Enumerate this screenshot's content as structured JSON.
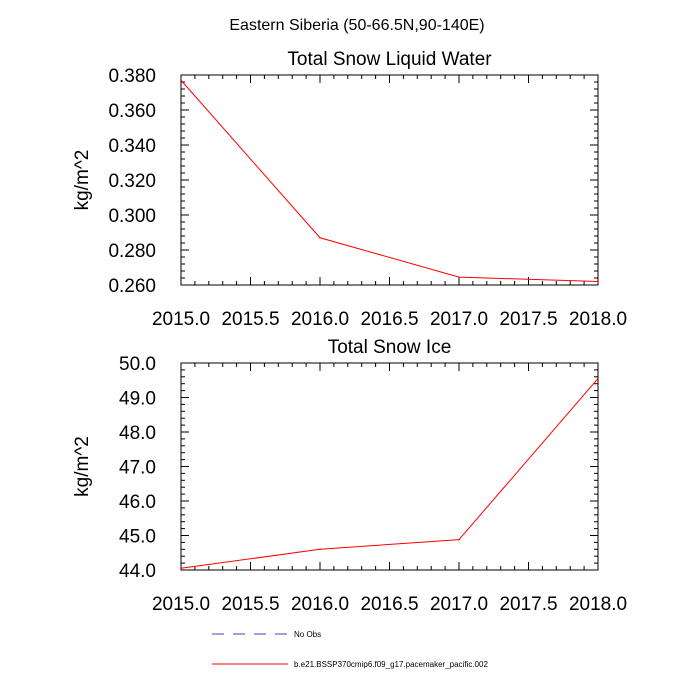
{
  "figure": {
    "title": "Eastern Siberia (50-66.5N,90-140E)"
  },
  "legend": {
    "entries": [
      {
        "label": "No Obs",
        "color": "#4a3fb8",
        "dash": true
      },
      {
        "label": "b.e21.BSSP370cmip6.f09_g17.pacemaker_pacific.002",
        "color": "#ff0000",
        "dash": false
      }
    ]
  },
  "chart_data": [
    {
      "type": "line",
      "title": "Total Snow Liquid Water",
      "xlabel": "",
      "ylabel": "kg/m^2",
      "xlim": [
        2015.0,
        2018.0
      ],
      "ylim": [
        0.26,
        0.38
      ],
      "xticks": [
        "2015.0",
        "2015.5",
        "2016.0",
        "2016.5",
        "2017.0",
        "2017.5",
        "2018.0"
      ],
      "yticks": [
        "0.260",
        "0.280",
        "0.300",
        "0.320",
        "0.340",
        "0.360",
        "0.380"
      ],
      "series": [
        {
          "name": "b.e21.BSSP370cmip6.f09_g17.pacemaker_pacific.002",
          "color": "#ff0000",
          "x": [
            2015,
            2016,
            2017,
            2018
          ],
          "y": [
            0.377,
            0.287,
            0.2645,
            0.262
          ]
        }
      ]
    },
    {
      "type": "line",
      "title": "Total Snow Ice",
      "xlabel": "",
      "ylabel": "kg/m^2",
      "xlim": [
        2015.0,
        2018.0
      ],
      "ylim": [
        44.0,
        50.0
      ],
      "xticks": [
        "2015.0",
        "2015.5",
        "2016.0",
        "2016.5",
        "2017.0",
        "2017.5",
        "2018.0"
      ],
      "yticks": [
        "44.0",
        "45.0",
        "46.0",
        "47.0",
        "48.0",
        "49.0",
        "50.0"
      ],
      "series": [
        {
          "name": "b.e21.BSSP370cmip6.f09_g17.pacemaker_pacific.002",
          "color": "#ff0000",
          "x": [
            2015,
            2016,
            2017,
            2018
          ],
          "y": [
            44.05,
            44.6,
            44.88,
            49.55
          ]
        }
      ]
    }
  ]
}
